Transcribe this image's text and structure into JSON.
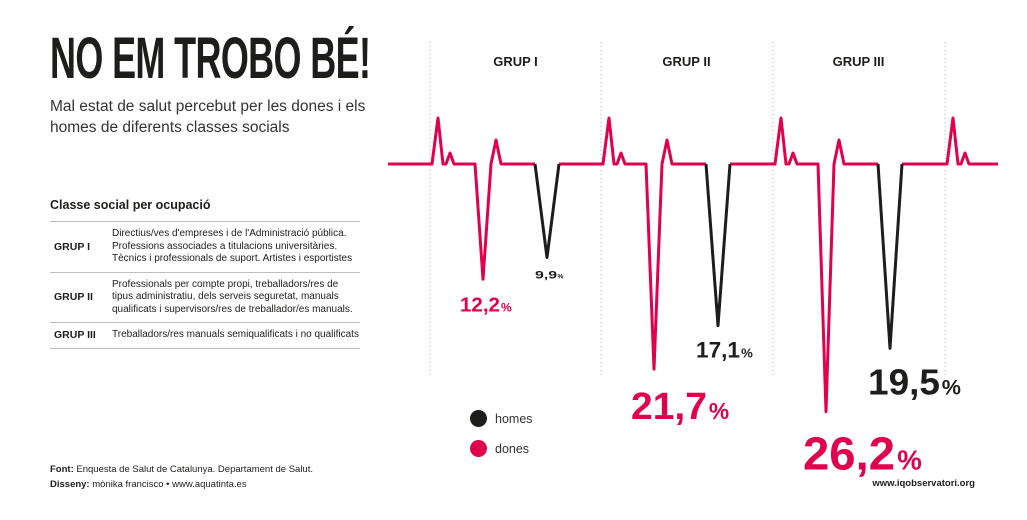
{
  "header": {
    "title": "NO EM TROBO BÉ!",
    "subtitle": "Mal estat de salut percebut per les dones i els homes de diferents classes socials"
  },
  "classes": {
    "heading": "Classe social per ocupació",
    "rows": [
      {
        "group": "GRUP I",
        "description": "Directius/ves d'empreses  i  de l'Administració pública. Professions associades a titulacions universitàries. Tècnics i professionals de suport. Artistes i esportistes"
      },
      {
        "group": "GRUP II",
        "description": "Professionals per compte propi, treballadors/res de tipus administratiu, dels serveis seguretat, manuals qualificats i supervisors/res de treballador/es manuals."
      },
      {
        "group": "GRUP III",
        "description": "Treballadors/res manuals semiqualificats i no qualificats"
      }
    ]
  },
  "footer": {
    "font_label": "Font:",
    "font_text": "Enquesta de Salut de Catalunya. Departament de Salut.",
    "design_label": "Disseny:",
    "design_text": "mònika francisco • www.aquatinta.es",
    "url": "www.iqobservatori.org"
  },
  "legend": {
    "homes": "homes",
    "dones": "dones"
  },
  "colors": {
    "dones": "#e0004d",
    "homes": "#1d1d1b",
    "divider": "#b0b0b0"
  },
  "chart_data": {
    "type": "bar",
    "categories": [
      "GRUP I",
      "GRUP II",
      "GRUP III"
    ],
    "series": [
      {
        "name": "dones",
        "values": [
          12.2,
          21.7,
          26.2
        ],
        "labels": [
          "12,2",
          "21,7",
          "26,2"
        ]
      },
      {
        "name": "homes",
        "values": [
          9.9,
          17.1,
          19.5
        ],
        "labels": [
          "9,9",
          "17,1",
          "19,5"
        ]
      }
    ],
    "unit": "%"
  }
}
